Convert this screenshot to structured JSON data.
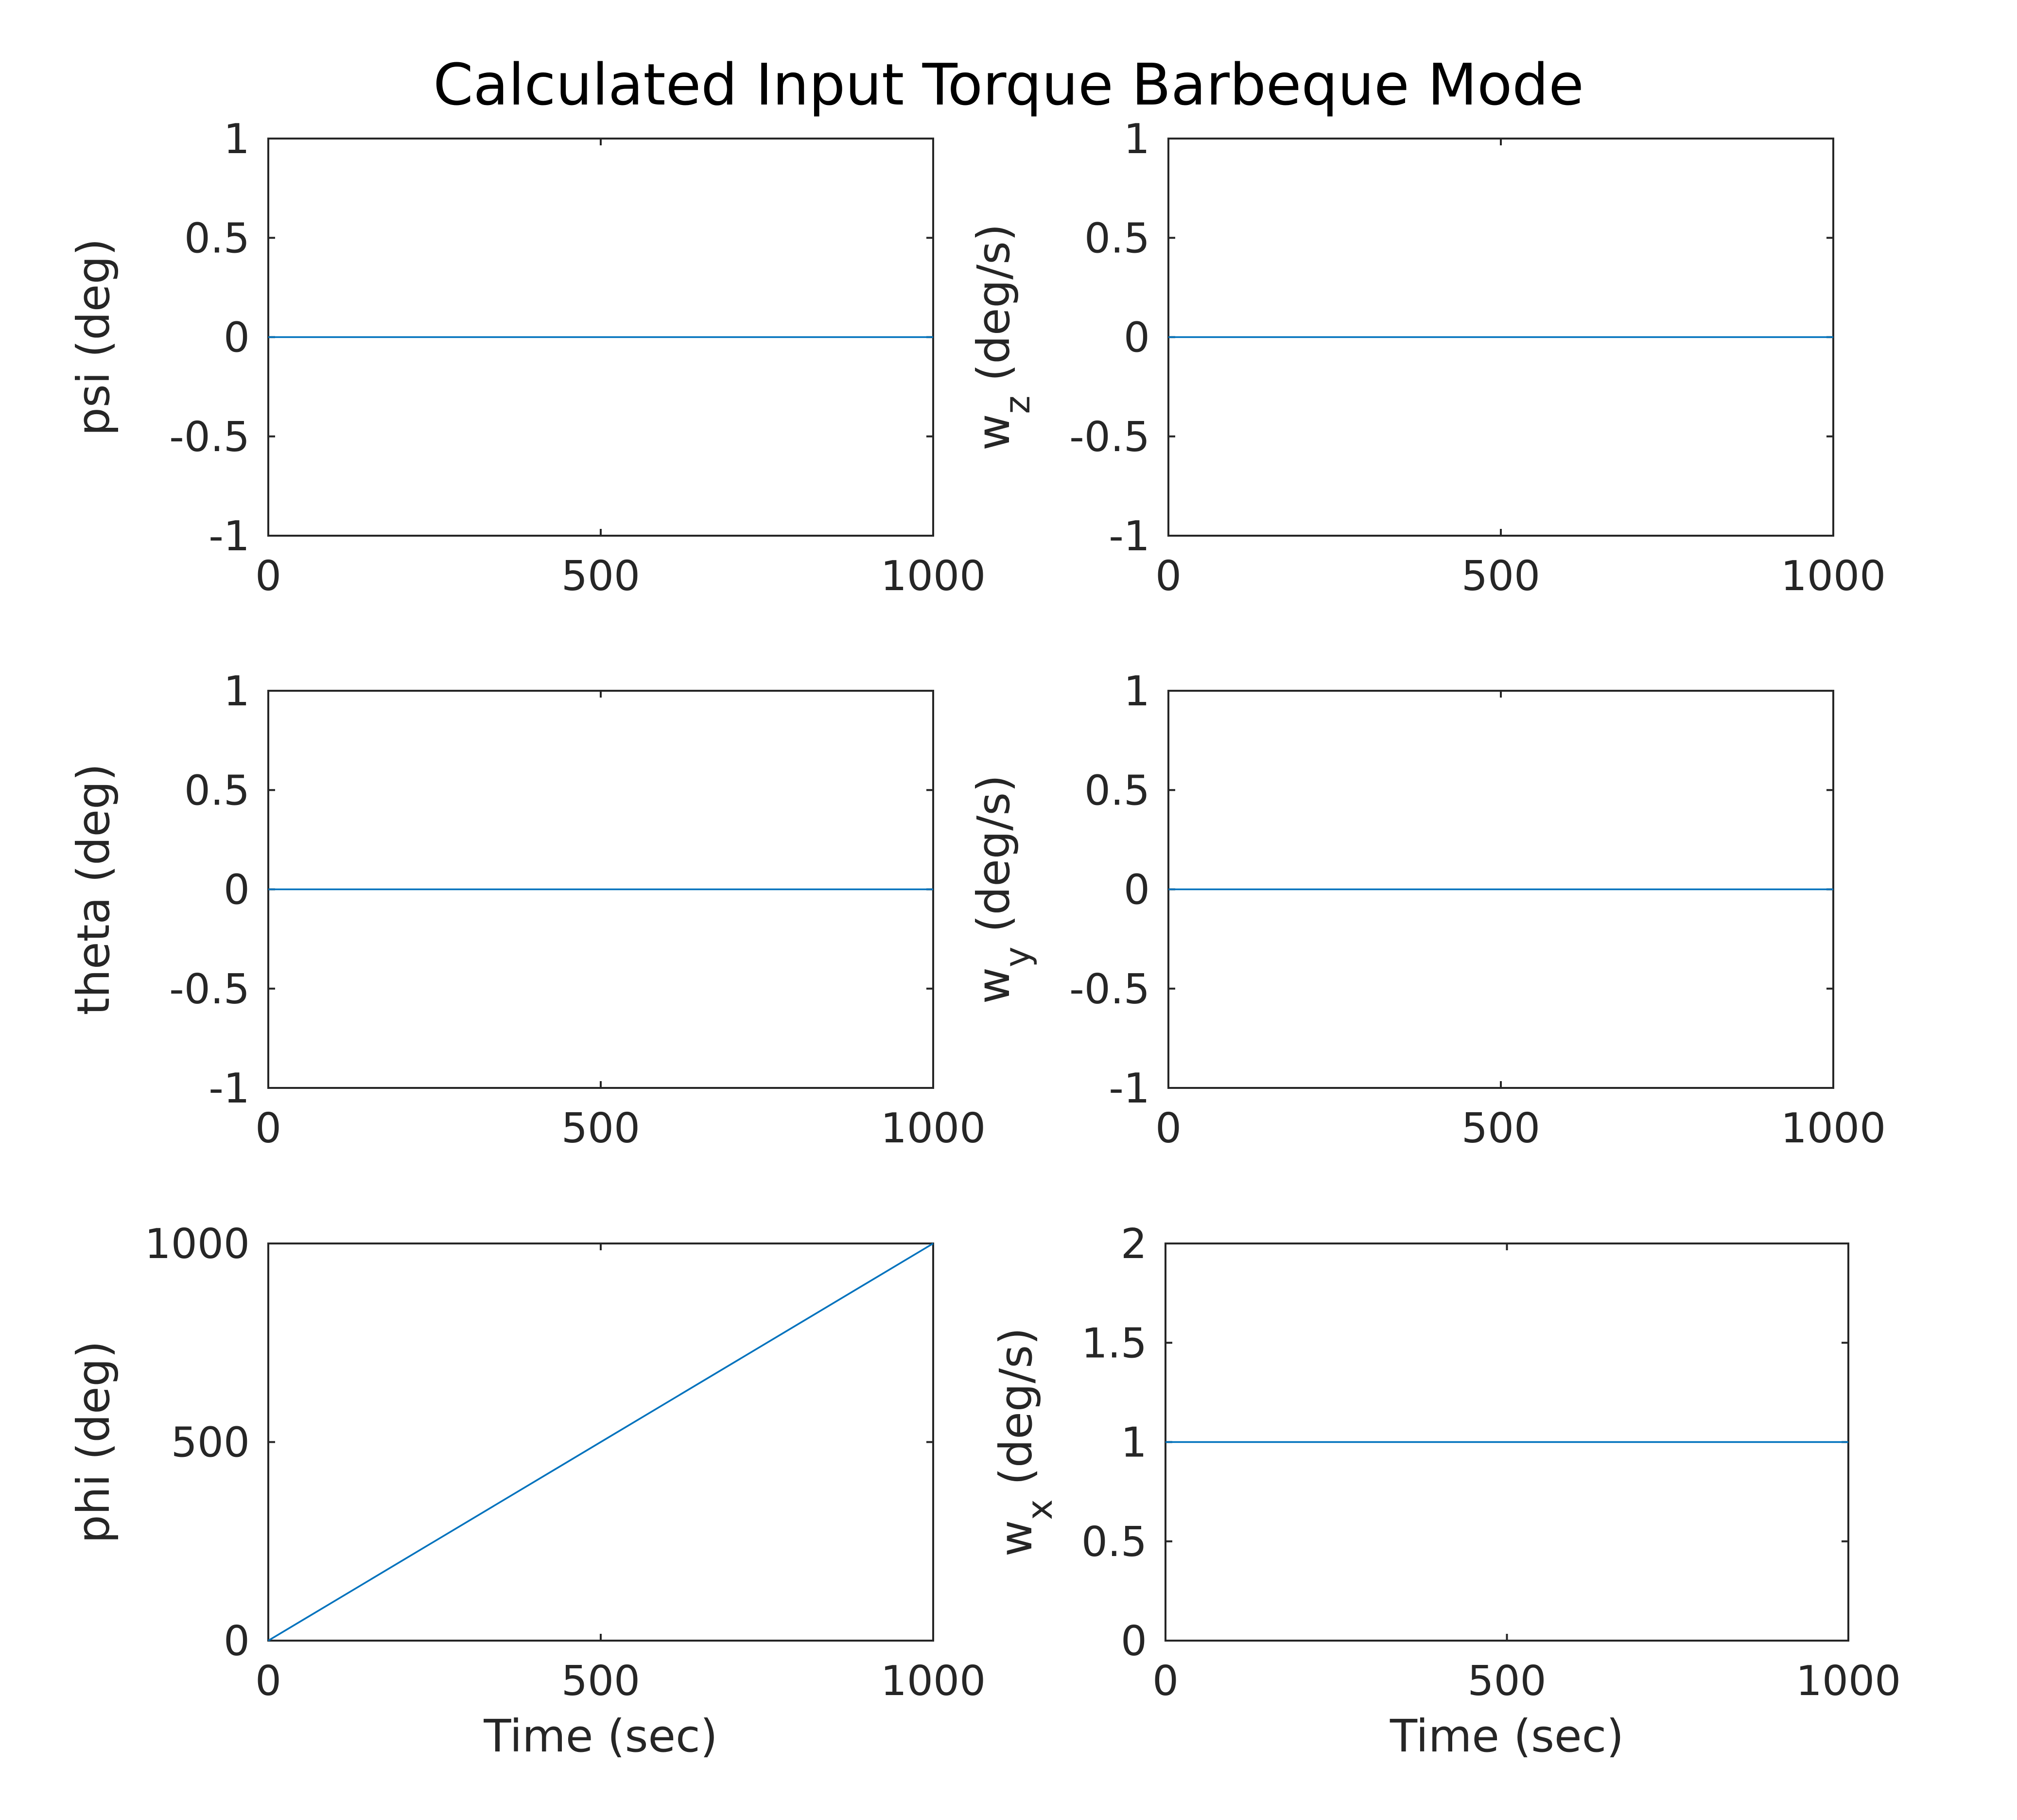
{
  "chart_data": {
    "title": "Calculated Input Torque Barbeque Mode",
    "line_color": "#0072BD",
    "panels": [
      {
        "type": "line",
        "ylabel": {
          "base": "psi (deg)",
          "sub": ""
        },
        "xlabel": "",
        "xlim": [
          0,
          1000
        ],
        "ylim": [
          -1,
          1
        ],
        "xticks": [
          "0",
          "500",
          "1000"
        ],
        "yticks": [
          "-1",
          "-0.5",
          "0",
          "0.5",
          "1"
        ],
        "x": [
          0,
          1000
        ],
        "y": [
          0,
          0
        ]
      },
      {
        "type": "line",
        "ylabel": {
          "base": "w",
          "sub": "z",
          "unit": " (deg/s)"
        },
        "xlabel": "",
        "xlim": [
          0,
          1000
        ],
        "ylim": [
          -1,
          1
        ],
        "xticks": [
          "0",
          "500",
          "1000"
        ],
        "yticks": [
          "-1",
          "-0.5",
          "0",
          "0.5",
          "1"
        ],
        "x": [
          0,
          1000
        ],
        "y": [
          0,
          0
        ]
      },
      {
        "type": "line",
        "ylabel": {
          "base": "theta (deg)",
          "sub": ""
        },
        "xlabel": "",
        "xlim": [
          0,
          1000
        ],
        "ylim": [
          -1,
          1
        ],
        "xticks": [
          "0",
          "500",
          "1000"
        ],
        "yticks": [
          "-1",
          "-0.5",
          "0",
          "0.5",
          "1"
        ],
        "x": [
          0,
          1000
        ],
        "y": [
          0,
          0
        ]
      },
      {
        "type": "line",
        "ylabel": {
          "base": "w",
          "sub": "y",
          "unit": " (deg/s)"
        },
        "xlabel": "",
        "xlim": [
          0,
          1000
        ],
        "ylim": [
          -1,
          1
        ],
        "xticks": [
          "0",
          "500",
          "1000"
        ],
        "yticks": [
          "-1",
          "-0.5",
          "0",
          "0.5",
          "1"
        ],
        "x": [
          0,
          1000
        ],
        "y": [
          0,
          0
        ]
      },
      {
        "type": "line",
        "ylabel": {
          "base": "phi (deg)",
          "sub": ""
        },
        "xlabel": "Time (sec)",
        "xlim": [
          0,
          1000
        ],
        "ylim": [
          0,
          1000
        ],
        "xticks": [
          "0",
          "500",
          "1000"
        ],
        "yticks": [
          "0",
          "500",
          "1000"
        ],
        "x": [
          0,
          1000
        ],
        "y": [
          0,
          1000
        ]
      },
      {
        "type": "line",
        "ylabel": {
          "base": "w",
          "sub": "x",
          "unit": " (deg/s)"
        },
        "xlabel": "Time (sec)",
        "xlim": [
          0,
          1000
        ],
        "ylim": [
          0,
          2
        ],
        "xticks": [
          "0",
          "500",
          "1000"
        ],
        "yticks": [
          "0",
          "0.5",
          "1",
          "1.5",
          "2"
        ],
        "x": [
          0,
          1000
        ],
        "y": [
          1,
          1
        ]
      }
    ]
  }
}
